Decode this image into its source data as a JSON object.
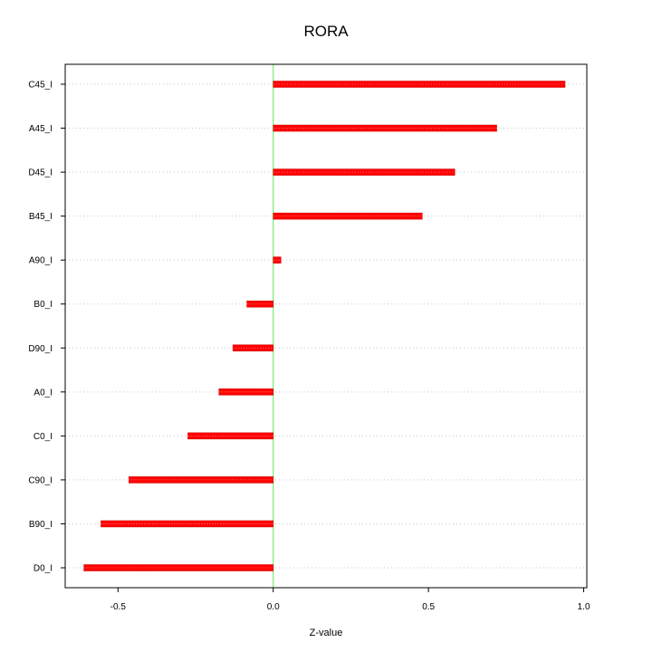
{
  "chart_data": {
    "type": "bar",
    "orientation": "horizontal",
    "title": "RORA",
    "xlabel": "Z-value",
    "ylabel": "",
    "xlim": [
      -0.67,
      1.01
    ],
    "xticks": [
      -0.5,
      0.0,
      0.5,
      1.0
    ],
    "xtick_labels": [
      "-0.5",
      "0.0",
      "0.5",
      "1.0"
    ],
    "reference_line": 0.0,
    "grid": "horizontal dotted",
    "categories": [
      "C45_I",
      "A45_I",
      "D45_I",
      "B45_I",
      "A90_I",
      "B0_I",
      "D90_I",
      "A0_I",
      "C0_I",
      "C90_I",
      "B90_I",
      "D0_I"
    ],
    "values": [
      0.94,
      0.72,
      0.585,
      0.48,
      0.025,
      -0.085,
      -0.13,
      -0.175,
      -0.275,
      -0.465,
      -0.555,
      -0.61
    ],
    "colors": {
      "bar": "#ff0000",
      "bar_outline": "#cc0000",
      "reference_line": "#90ee90",
      "grid": "#c8c8c8",
      "axis": "#000000"
    }
  }
}
